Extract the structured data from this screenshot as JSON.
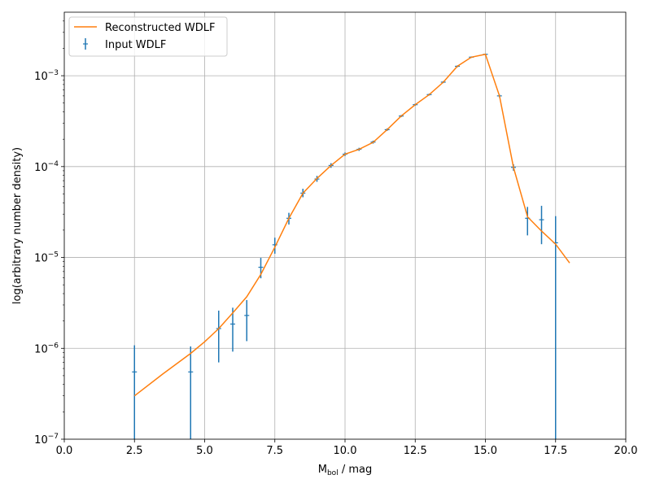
{
  "chart_data": {
    "type": "line",
    "title": "",
    "xlabel": {
      "main": "M",
      "sub": "bol",
      "rest": " / mag"
    },
    "ylabel": "log(arbitrary number density)",
    "xlim": [
      0,
      20
    ],
    "ylim": [
      1e-07,
      0.005
    ],
    "yscale": "log",
    "grid": true,
    "legend_position": "top-left",
    "x_ticks": [
      0,
      2.5,
      5,
      7.5,
      10,
      12.5,
      15,
      17.5,
      20
    ],
    "x_tick_labels": [
      "0.0",
      "2.5",
      "5.0",
      "7.5",
      "10.0",
      "12.5",
      "15.0",
      "17.5",
      "20.0"
    ],
    "y_ticks": [
      {
        "value": 1e-07,
        "base": "10",
        "exp": "−7"
      },
      {
        "value": 1e-06,
        "base": "10",
        "exp": "−6"
      },
      {
        "value": 1e-05,
        "base": "10",
        "exp": "−5"
      },
      {
        "value": 0.0001,
        "base": "10",
        "exp": "−4"
      },
      {
        "value": 0.001,
        "base": "10",
        "exp": "−3"
      }
    ],
    "series": [
      {
        "name": "Reconstructed WDLF",
        "kind": "line",
        "color": "#ff7f0e",
        "points": [
          [
            2.5,
            3e-07
          ],
          [
            3.5,
            5.2e-07
          ],
          [
            4.5,
            8.8e-07
          ],
          [
            5.0,
            1.18e-06
          ],
          [
            5.5,
            1.65e-06
          ],
          [
            6.0,
            2.45e-06
          ],
          [
            6.5,
            3.7e-06
          ],
          [
            7.0,
            6.5e-06
          ],
          [
            7.5,
            1.3e-05
          ],
          [
            8.0,
            2.7e-05
          ],
          [
            8.5,
            5.1e-05
          ],
          [
            9.0,
            7.4e-05
          ],
          [
            9.5,
            0.000103
          ],
          [
            10.0,
            0.000137
          ],
          [
            10.5,
            0.000155
          ],
          [
            11.0,
            0.000185
          ],
          [
            11.5,
            0.000255
          ],
          [
            12.0,
            0.00036
          ],
          [
            12.5,
            0.00048
          ],
          [
            13.0,
            0.00062
          ],
          [
            13.5,
            0.00085
          ],
          [
            14.0,
            0.00127
          ],
          [
            14.5,
            0.0016
          ],
          [
            15.0,
            0.00172
          ],
          [
            15.5,
            0.0006
          ],
          [
            16.0,
            9.8e-05
          ],
          [
            16.5,
            2.8e-05
          ],
          [
            17.0,
            1.95e-05
          ],
          [
            17.5,
            1.4e-05
          ],
          [
            18.0,
            8.7e-06
          ]
        ]
      },
      {
        "name": "Input WDLF",
        "kind": "errorbar",
        "color": "#1f77b4",
        "points": [
          {
            "x": 2.5,
            "y": 5.5e-07,
            "lo": 1e-07,
            "hi": 1.08e-06
          },
          {
            "x": 4.5,
            "y": 5.5e-07,
            "lo": 1e-07,
            "hi": 1.05e-06
          },
          {
            "x": 5.5,
            "y": 1.65e-06,
            "lo": 7e-07,
            "hi": 2.6e-06
          },
          {
            "x": 6.0,
            "y": 1.85e-06,
            "lo": 9.2e-07,
            "hi": 2.8e-06
          },
          {
            "x": 6.5,
            "y": 2.3e-06,
            "lo": 1.2e-06,
            "hi": 3.4e-06
          },
          {
            "x": 7.0,
            "y": 7.8e-06,
            "lo": 5.9e-06,
            "hi": 9.9e-06
          },
          {
            "x": 7.5,
            "y": 1.38e-05,
            "lo": 1.1e-05,
            "hi": 1.65e-05
          },
          {
            "x": 8.0,
            "y": 2.7e-05,
            "lo": 2.3e-05,
            "hi": 3.1e-05
          },
          {
            "x": 8.5,
            "y": 5.1e-05,
            "lo": 4.6e-05,
            "hi": 5.7e-05
          },
          {
            "x": 9.0,
            "y": 7.3e-05,
            "lo": 6.8e-05,
            "hi": 7.9e-05
          },
          {
            "x": 9.5,
            "y": 0.000103,
            "lo": 9.7e-05,
            "hi": 0.000109
          },
          {
            "x": 10.0,
            "y": 0.000137,
            "lo": 0.000131,
            "hi": 0.000143
          },
          {
            "x": 10.5,
            "y": 0.000155,
            "lo": 0.000149,
            "hi": 0.000161
          },
          {
            "x": 11.0,
            "y": 0.000186,
            "lo": 0.000179,
            "hi": 0.000193
          },
          {
            "x": 11.5,
            "y": 0.000255,
            "lo": 0.000247,
            "hi": 0.000263
          },
          {
            "x": 12.0,
            "y": 0.00036,
            "lo": 0.00035,
            "hi": 0.00037
          },
          {
            "x": 12.5,
            "y": 0.00048,
            "lo": 0.000468,
            "hi": 0.000492
          },
          {
            "x": 13.0,
            "y": 0.00062,
            "lo": 0.000605,
            "hi": 0.000635
          },
          {
            "x": 13.5,
            "y": 0.00085,
            "lo": 0.00083,
            "hi": 0.00087
          },
          {
            "x": 14.0,
            "y": 0.00127,
            "lo": 0.00124,
            "hi": 0.0013
          },
          {
            "x": 14.5,
            "y": 0.0016,
            "lo": 0.00157,
            "hi": 0.00163
          },
          {
            "x": 15.0,
            "y": 0.00172,
            "lo": 0.00169,
            "hi": 0.00175
          },
          {
            "x": 15.5,
            "y": 0.0006,
            "lo": 0.00058,
            "hi": 0.00062
          },
          {
            "x": 16.0,
            "y": 9.8e-05,
            "lo": 9e-05,
            "hi": 0.000106
          },
          {
            "x": 16.5,
            "y": 2.7e-05,
            "lo": 1.75e-05,
            "hi": 3.6e-05
          },
          {
            "x": 17.0,
            "y": 2.6e-05,
            "lo": 1.4e-05,
            "hi": 3.7e-05
          },
          {
            "x": 17.5,
            "y": 1.45e-05,
            "lo": 1e-07,
            "hi": 2.85e-05
          }
        ]
      }
    ]
  }
}
